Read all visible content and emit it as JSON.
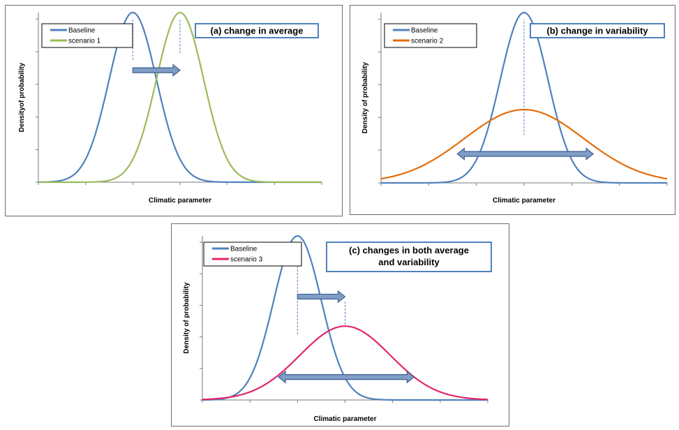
{
  "chart_data": [
    {
      "type": "line",
      "title": "(a) change in average",
      "xlabel": "Climatic parameter",
      "ylabel": "Densityof probability",
      "xlim": [
        -4,
        8
      ],
      "ylim": [
        0,
        1
      ],
      "grid": false,
      "legend_position": "top-left",
      "series": [
        {
          "name": "Baseline",
          "mean": 0,
          "sd": 1,
          "peak": 1.0,
          "color": "#4f81bd"
        },
        {
          "name": "scenario 1",
          "mean": 2,
          "sd": 1,
          "peak": 1.0,
          "color": "#9bbb59"
        }
      ],
      "annotations": [
        {
          "type": "vline-dashed",
          "x": 0,
          "y_range": [
            0.72,
            0.96
          ]
        },
        {
          "type": "vline-dashed",
          "x": 2,
          "y_range": [
            0.76,
            0.96
          ]
        },
        {
          "type": "arrow-right",
          "from": 0,
          "to": 2,
          "y": 0.66
        }
      ]
    },
    {
      "type": "line",
      "title": "(b) change in variability",
      "xlabel": "Climatic parameter",
      "ylabel": "Density of probability",
      "xlim": [
        -6,
        6
      ],
      "ylim": [
        0,
        1
      ],
      "grid": false,
      "legend_position": "top-left",
      "series": [
        {
          "name": "Baseline",
          "mean": 0,
          "sd": 1,
          "peak": 1.0,
          "color": "#4f81bd"
        },
        {
          "name": "scenario 2",
          "mean": 0,
          "sd": 2.5,
          "peak": 0.43,
          "color": "#e46c0a"
        }
      ],
      "annotations": [
        {
          "type": "vline-dashed",
          "x": 0,
          "y_range": [
            0.28,
            0.96
          ]
        },
        {
          "type": "arrow-both",
          "from": -2.8,
          "to": 2.9,
          "y": 0.17
        }
      ]
    },
    {
      "type": "line",
      "title": "(c) changes in both average and variability",
      "xlabel": "Climatic parameter",
      "ylabel": "Density of probability",
      "xlim": [
        -4,
        8
      ],
      "ylim": [
        0,
        1
      ],
      "grid": false,
      "legend_position": "top-left",
      "series": [
        {
          "name": "Baseline",
          "mean": 0,
          "sd": 1,
          "peak": 1.0,
          "color": "#4f81bd"
        },
        {
          "name": "scenario 3",
          "mean": 2,
          "sd": 1.9,
          "peak": 0.45,
          "color": "#e2266a"
        }
      ],
      "annotations": [
        {
          "type": "vline-dashed",
          "x": 0,
          "y_range": [
            0.4,
            0.96
          ]
        },
        {
          "type": "vline-dashed",
          "x": 2,
          "y_range": [
            0.46,
            0.6
          ]
        },
        {
          "type": "arrow-right",
          "from": 0,
          "to": 2,
          "y": 0.63
        },
        {
          "type": "arrow-both",
          "from": -0.8,
          "to": 4.9,
          "y": 0.14
        }
      ]
    }
  ]
}
